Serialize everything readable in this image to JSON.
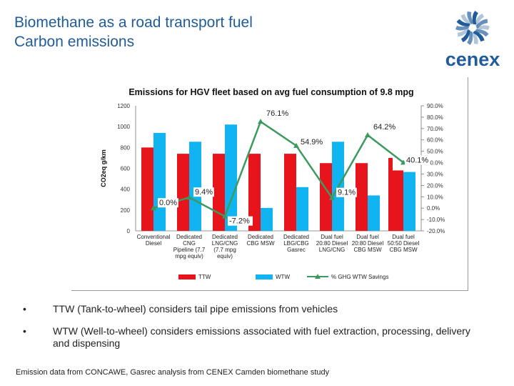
{
  "slide": {
    "title_line1": "Biomethane as a road transport fuel",
    "title_line2": "Carbon emissions",
    "logo_text": "cenex",
    "source": "Emission data from CONCAWE, Gasrec analysis from CENEX Camden biomethane study"
  },
  "bullets": [
    {
      "marker": "•",
      "text": "TTW  (Tank-to-wheel) considers tail pipe emissions from vehicles"
    },
    {
      "marker": "•",
      "text": "WTW  (Well-to-wheel) considers emissions associated with fuel extraction, processing, delivery and dispensing"
    }
  ],
  "colors": {
    "title": "#1f5c99",
    "ttw": "#e8141c",
    "wtw": "#10b4f0",
    "savings": "#3c9a5f",
    "logo": "#1f5c99"
  },
  "chart_data": {
    "type": "bar",
    "title": "Emissions for HGV fleet based on avg fuel consumption of 9.8 mpg",
    "ylabel": "CO2eq g/km",
    "ylim": [
      0,
      1200
    ],
    "yticks": [
      "0",
      "200",
      "400",
      "600",
      "800",
      "1000",
      "1200"
    ],
    "y2lim": [
      -20,
      90
    ],
    "y2ticks": [
      "-20.0%",
      "-10.0%",
      "0.0%",
      "10.0%",
      "20.0%",
      "30.0%",
      "40.0%",
      "50.0%",
      "60.0%",
      "70.0%",
      "80.0%",
      "90.0%"
    ],
    "categories": [
      [
        "Conventional",
        "Diesel"
      ],
      [
        "Dedicated",
        "CNG",
        "Pipeline (7.7",
        "mpg equiv)"
      ],
      [
        "Dedicated",
        "LNG/CNG",
        "(7.7 mpg",
        "equiv)"
      ],
      [
        "Dedicated",
        "CBG MSW"
      ],
      [
        "Dedicated",
        "LBG/CBG",
        "Gasrec"
      ],
      [
        "Dual fuel",
        "20:80 Diesel",
        "LNG/CNG"
      ],
      [
        "Dual fuel",
        "20:80 Diesel",
        "CBG MSW"
      ],
      [
        "Dual fuel",
        "50:50 Diesel",
        "CBG MSW"
      ]
    ],
    "series": [
      {
        "name": "TTW",
        "type": "bar",
        "axis": "left",
        "values": [
          800,
          740,
          740,
          740,
          740,
          650,
          650,
          580
        ]
      },
      {
        "name": "WTW",
        "type": "bar",
        "axis": "left",
        "values": [
          940,
          855,
          1020,
          220,
          420,
          855,
          340,
          565
        ]
      },
      {
        "name": "% GHG WTW Savings",
        "type": "line",
        "axis": "right",
        "values": [
          0.0,
          9.4,
          -7.2,
          76.1,
          54.9,
          9.1,
          64.2,
          40.1
        ],
        "labels": [
          "0.0%",
          "9.4%",
          "-7.2%",
          "76.1%",
          "54.9%",
          "9.1%",
          "64.2%",
          "40.1%"
        ]
      }
    ],
    "extra_bar": {
      "category_index": 7,
      "value": 700
    },
    "legend_position": "bottom"
  }
}
